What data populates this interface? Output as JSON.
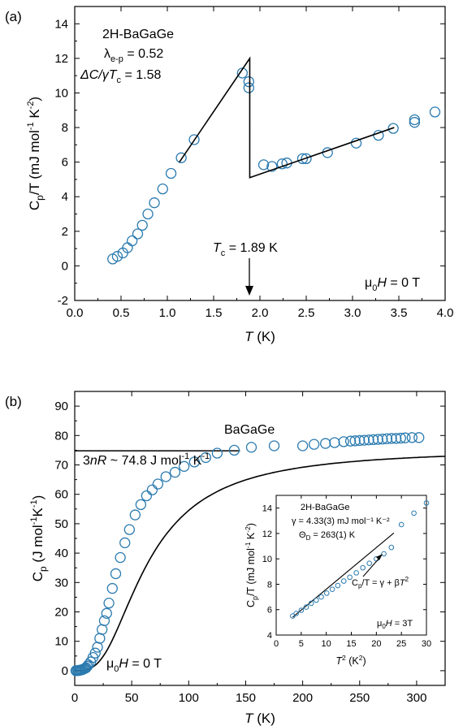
{
  "chart_data": [
    {
      "panel": "(a)",
      "type": "scatter",
      "xlabel": {
        "italic": "T",
        "rest": " (K)"
      },
      "ylabel": {
        "text": "C",
        "sub": "p",
        "text2": "/T (mJ mol",
        "sup1": "-1",
        "text3": " K",
        "sup2": "-2",
        "text4": ")"
      },
      "xlim": [
        0,
        4
      ],
      "ylim": [
        -2,
        15
      ],
      "xticks": [
        "0.0",
        "0.5",
        "1.0",
        "1.5",
        "2.0",
        "2.5",
        "3.0",
        "3.5",
        "4.0"
      ],
      "yticks": [
        "-2",
        "0",
        "2",
        "4",
        "6",
        "8",
        "10",
        "12",
        "14"
      ],
      "annotations": {
        "material": "2H-BaGaGe",
        "lambda": {
          "sym": "λ",
          "sub": "e-p",
          "val": " = 0.52"
        },
        "jump": {
          "pre": "ΔC/γT",
          "sub": "c",
          "val": " = 1.58"
        },
        "tc": {
          "sym": "T",
          "sub": "c",
          "val": " = 1.89 K"
        },
        "field": {
          "pre": "μ",
          "sub": "0",
          "ital": "H",
          "val": " = 0 T"
        }
      },
      "points": {
        "x": [
          0.41,
          0.46,
          0.52,
          0.57,
          0.62,
          0.68,
          0.73,
          0.79,
          0.86,
          0.95,
          1.04,
          1.15,
          1.29,
          1.81,
          1.88,
          1.88,
          2.04,
          2.13,
          2.24,
          2.29,
          2.46,
          2.5,
          2.73,
          3.04,
          3.28,
          3.44,
          3.67,
          3.67,
          3.89
        ],
        "y": [
          0.4,
          0.55,
          0.75,
          1.05,
          1.45,
          1.85,
          2.35,
          3.0,
          3.65,
          4.45,
          5.35,
          6.25,
          7.3,
          11.15,
          10.65,
          10.3,
          5.85,
          5.75,
          5.9,
          5.95,
          6.2,
          6.2,
          6.55,
          7.1,
          7.55,
          7.95,
          8.3,
          8.45,
          8.9
        ]
      },
      "fit_line": [
        [
          1.13,
          6.0
        ],
        [
          1.89,
          12.0
        ],
        [
          1.89,
          5.1
        ],
        [
          3.45,
          8.0
        ]
      ],
      "marker_color": "#2a7aaf"
    },
    {
      "panel": "(b)",
      "type": "scatter",
      "xlabel": {
        "italic": "T",
        "rest": " (K)"
      },
      "ylabel": {
        "text": "C",
        "sub": "p",
        "text2": " (J mol",
        "sup1": "-1",
        "text3": "K",
        "sup2": "-1",
        "text4": ")"
      },
      "xlim": [
        0,
        325
      ],
      "ylim": [
        -5,
        95
      ],
      "xticks": [
        "0",
        "50",
        "100",
        "150",
        "200",
        "250",
        "300"
      ],
      "yticks": [
        "0",
        "10",
        "20",
        "30",
        "40",
        "50",
        "60",
        "70",
        "80",
        "90"
      ],
      "annotations": {
        "material": "BaGaGe",
        "dulong": {
          "pre": "3",
          "ital": "nR",
          "val": " ~ 74.8 J mol",
          "sup": "-1",
          "val2": " K",
          "sup2": "-1"
        },
        "field": {
          "pre": "μ",
          "sub": "0",
          "ital": "H",
          "val": " = 0 T"
        }
      },
      "points": {
        "x": [
          1,
          2,
          3,
          4,
          5,
          6,
          7,
          8,
          9,
          10,
          11,
          12,
          14,
          16,
          18,
          20,
          22,
          24,
          26,
          28,
          30,
          33,
          36,
          40,
          44,
          48,
          53,
          58,
          63,
          68,
          73,
          80,
          88,
          96,
          105,
          115,
          125,
          140,
          155,
          175,
          200,
          210,
          220,
          228,
          236,
          242,
          246,
          250,
          254,
          258,
          262,
          266,
          270,
          274,
          278,
          282,
          286,
          290,
          296,
          302
        ],
        "y": [
          0.0,
          0.0,
          0.1,
          0.1,
          0.2,
          0.3,
          0.4,
          0.6,
          0.8,
          1.0,
          1.5,
          2.0,
          3.0,
          4.5,
          6.0,
          8.0,
          11.0,
          14.0,
          17.0,
          19.5,
          23.0,
          28.0,
          33.0,
          38.5,
          43.5,
          48.0,
          53.0,
          56.5,
          59.5,
          61.5,
          63.5,
          66.0,
          67.5,
          69.5,
          71.0,
          72.5,
          74.0,
          75.0,
          76.0,
          76.5,
          76.5,
          77.0,
          77.3,
          77.6,
          77.9,
          78.1,
          78.2,
          78.3,
          78.4,
          78.5,
          78.6,
          78.7,
          78.8,
          78.9,
          79.0,
          79.0,
          79.1,
          79.2,
          79.3,
          79.3
        ]
      },
      "dulong_value": 74.8,
      "marker_color": "#2a7aaf"
    },
    {
      "panel": "(b) inset",
      "type": "scatter",
      "xlabel": {
        "italic": "T",
        "sup": "2",
        "rest": " (K",
        "sup2": "2",
        "rest2": ")"
      },
      "ylabel": {
        "text": "C",
        "sub": "p",
        "text2": "/T (mJ mol",
        "sup1": "-1",
        "text3": " K",
        "sup2": "-2",
        "text4": ")"
      },
      "xlim": [
        0,
        30
      ],
      "ylim": [
        4,
        15
      ],
      "xticks": [
        "0",
        "5",
        "10",
        "15",
        "20",
        "25",
        "30"
      ],
      "yticks": [
        "4",
        "6",
        "8",
        "10",
        "12",
        "14"
      ],
      "annotations": {
        "material": "2H-BaGaGe",
        "gamma": "γ = 4.33(3) mJ mol⁻¹ K⁻²",
        "theta": {
          "sym": "Θ",
          "sub": "D",
          "val": " = 263(1) K"
        },
        "formula": {
          "pre": "C",
          "sub": "p",
          "mid": "/T = γ + β",
          "ital": "T",
          "sup": "2"
        },
        "field": {
          "pre": "μ",
          "sub": "0",
          "ital": "H",
          "val": " = 3T"
        }
      },
      "points": {
        "x": [
          3.3,
          4.0,
          5.0,
          6.0,
          7.0,
          8.0,
          9.0,
          10.1,
          11.2,
          12.3,
          13.5,
          14.7,
          16.0,
          17.3,
          18.6,
          20.0,
          21.5,
          23.0,
          25.0,
          27.5,
          30.0
        ],
        "y": [
          5.5,
          5.7,
          5.95,
          6.2,
          6.5,
          6.75,
          7.0,
          7.3,
          7.6,
          7.9,
          8.25,
          8.55,
          8.9,
          9.3,
          9.65,
          10.0,
          10.4,
          10.9,
          12.7,
          13.6,
          14.4
        ]
      },
      "fit_line": {
        "gamma": 4.33,
        "slope": 0.328,
        "xrange": [
          3.3,
          23.5
        ]
      },
      "marker_color": "#2a7aaf"
    }
  ]
}
